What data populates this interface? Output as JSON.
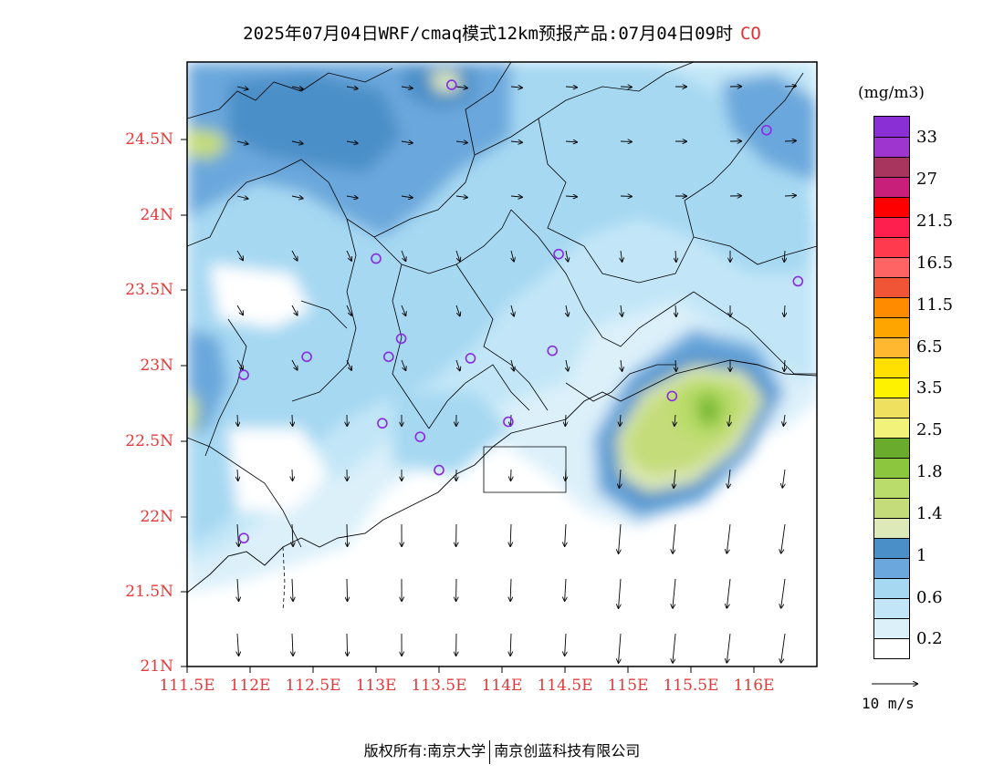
{
  "title": {
    "text": "2025年07月04日WRF/cmaq模式12km预报产品:07月04日09时",
    "pollutant": "CO"
  },
  "map": {
    "lat_ticks": [
      "24.5N",
      "24N",
      "23.5N",
      "23N",
      "22.5N",
      "22N",
      "21.5N",
      "21N"
    ],
    "lon_ticks": [
      "111.5E",
      "112E",
      "112.5E",
      "113E",
      "113.5E",
      "114E",
      "114.5E",
      "115E",
      "115.5E",
      "116E"
    ],
    "stations": [
      {
        "lon": 113.6,
        "lat": 24.85
      },
      {
        "lon": 116.1,
        "lat": 24.55
      },
      {
        "lon": 113.0,
        "lat": 23.7
      },
      {
        "lon": 114.45,
        "lat": 23.73
      },
      {
        "lon": 116.35,
        "lat": 23.55
      },
      {
        "lon": 113.2,
        "lat": 23.17
      },
      {
        "lon": 113.1,
        "lat": 23.05
      },
      {
        "lon": 112.45,
        "lat": 23.05
      },
      {
        "lon": 113.75,
        "lat": 23.04
      },
      {
        "lon": 114.4,
        "lat": 23.09
      },
      {
        "lon": 111.95,
        "lat": 22.93
      },
      {
        "lon": 115.35,
        "lat": 22.79
      },
      {
        "lon": 114.05,
        "lat": 22.62
      },
      {
        "lon": 113.05,
        "lat": 22.61
      },
      {
        "lon": 113.35,
        "lat": 22.52
      },
      {
        "lon": 113.5,
        "lat": 22.3
      },
      {
        "lon": 111.95,
        "lat": 21.85
      }
    ]
  },
  "legend": {
    "unit": "(mg/m3)",
    "labels": [
      "33",
      "27",
      "21.5",
      "16.5",
      "11.5",
      "6.5",
      "3.5",
      "2.5",
      "1.8",
      "1.4",
      "1",
      "0.6",
      "0.2"
    ],
    "colors": [
      "#8a2fd6",
      "#9f35cf",
      "#a8355e",
      "#c8207a",
      "#ff0000",
      "#ff1f4e",
      "#ff3a4f",
      "#ff6464",
      "#f05535",
      "#ff8c00",
      "#ffa500",
      "#ffb830",
      "#ffe000",
      "#fff200",
      "#f0e060",
      "#f2f27a",
      "#6aab2e",
      "#8cc63f",
      "#b9dc6b",
      "#c5dc7a",
      "#dde9b8",
      "#4b8fc8",
      "#6ba7dc",
      "#a6d8f2",
      "#c2e6f7",
      "#dcf0fa",
      "#ffffff"
    ],
    "vector_scale_label": "10 m/s"
  },
  "footer": {
    "left": "版权所有:南京大学",
    "right": "南京创蓝科技有限公司"
  }
}
